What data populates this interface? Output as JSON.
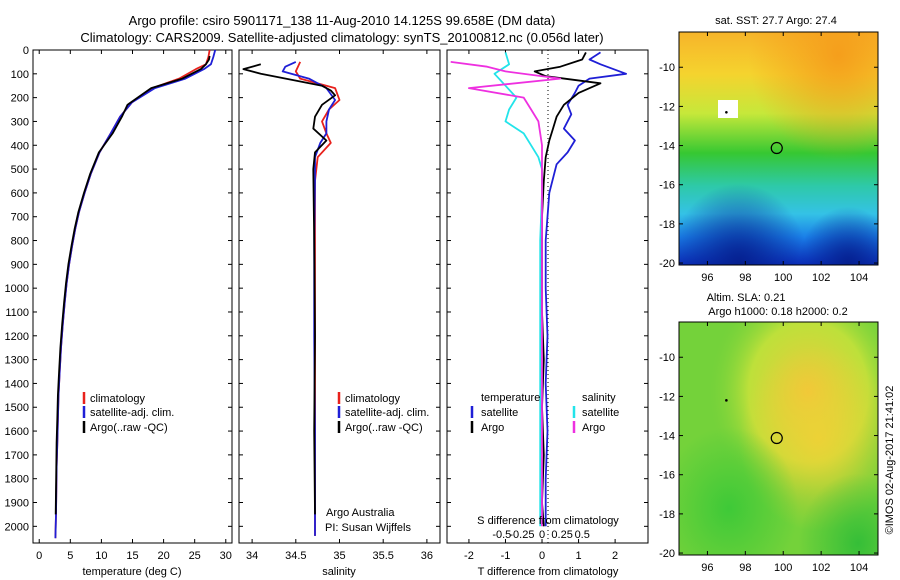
{
  "figure": {
    "title_line1": "Argo profile: csiro 5901171_138 11-Aug-2010 14.125S 99.658E (DM data)",
    "title_line2": "Climatology: CARS2009. Satellite-adjusted climatology: synTS_20100812.nc (0.056d later)",
    "watermark": "©IMOS 02-Aug-2017 21:41:02"
  },
  "colors": {
    "climatology": "#e8211c",
    "satellite": "#1f1fd6",
    "argo": "#000000",
    "sal_satellite": "#22e4ea",
    "sal_argo": "#ee30e0"
  },
  "chart_data": [
    {
      "id": "temperature",
      "type": "line",
      "xlabel": "temperature (deg C)",
      "ylabel": "",
      "xlim": [
        -1,
        31
      ],
      "ylim": [
        2070,
        0
      ],
      "xticks": [
        0,
        5,
        10,
        15,
        20,
        25,
        30
      ],
      "xtick_labels": [
        "0",
        "5",
        "10",
        "15",
        "20",
        "25",
        "30"
      ],
      "yticks": [
        0,
        100,
        200,
        300,
        400,
        500,
        600,
        700,
        800,
        900,
        1000,
        1100,
        1200,
        1300,
        1400,
        1500,
        1600,
        1700,
        1800,
        1900,
        2000
      ],
      "ytick_labels": [
        "0",
        "100",
        "200",
        "300",
        "400",
        "500",
        "600",
        "700",
        "800",
        "900",
        "1000",
        "1100",
        "1200",
        "1300",
        "1400",
        "1500",
        "1600",
        "1700",
        "1800",
        "1900",
        "2000"
      ],
      "legend": [
        "climatology",
        "satellite-adj. clim.",
        "Argo(..raw -QC)"
      ],
      "series": [
        {
          "name": "climatology",
          "color_key": "climatology",
          "x": [
            27.4,
            27.2,
            26.8,
            25.2,
            22.5,
            18.2,
            14.9,
            13.0,
            11.5,
            9.7,
            8.3,
            7.3,
            6.4,
            5.8,
            5.3,
            4.8,
            4.4,
            4.1,
            3.8,
            3.5,
            3.3,
            3.1,
            3.0,
            2.9,
            2.8,
            2.75,
            2.7,
            2.6
          ],
          "y": [
            0,
            30,
            60,
            80,
            120,
            160,
            220,
            280,
            350,
            430,
            520,
            600,
            680,
            750,
            820,
            900,
            980,
            1060,
            1150,
            1250,
            1350,
            1450,
            1550,
            1650,
            1750,
            1850,
            1950,
            2050
          ]
        },
        {
          "name": "satellite-adj. clim.",
          "color_key": "satellite",
          "x": [
            28.3,
            28.0,
            27.6,
            26.5,
            23.5,
            18.6,
            14.9,
            13.0,
            11.5,
            9.7,
            8.3,
            7.3,
            6.4,
            5.8,
            5.3,
            4.8,
            4.4,
            4.1,
            3.8,
            3.5,
            3.3,
            3.1,
            3.0,
            2.9,
            2.8,
            2.75,
            2.7,
            2.6
          ],
          "y": [
            0,
            30,
            60,
            80,
            120,
            160,
            220,
            280,
            350,
            430,
            520,
            600,
            680,
            750,
            820,
            900,
            980,
            1060,
            1150,
            1250,
            1350,
            1450,
            1550,
            1650,
            1750,
            1850,
            1950,
            2050
          ]
        },
        {
          "name": "Argo(..raw -QC)",
          "color_key": "argo",
          "x": [
            27.4,
            27.3,
            26.8,
            26.0,
            23.0,
            18.0,
            14.2,
            13.3,
            11.8,
            9.6,
            8.2,
            7.2,
            6.3,
            5.7,
            5.2,
            4.7,
            4.3,
            4.0,
            3.7,
            3.4,
            3.2,
            3.0,
            2.9,
            2.8,
            2.75,
            2.7,
            2.65
          ],
          "y": [
            25,
            40,
            60,
            80,
            120,
            160,
            230,
            280,
            350,
            430,
            520,
            600,
            680,
            750,
            820,
            900,
            980,
            1060,
            1150,
            1250,
            1350,
            1450,
            1550,
            1650,
            1750,
            1850,
            1950
          ]
        }
      ]
    },
    {
      "id": "salinity",
      "type": "line",
      "xlabel": "salinity",
      "ylabel": "",
      "xlim": [
        33.85,
        36.15
      ],
      "ylim": [
        2070,
        0
      ],
      "xticks": [
        34,
        34.5,
        35,
        35.5,
        36
      ],
      "xtick_labels": [
        "34",
        "34.5",
        "35",
        "35.5",
        "36"
      ],
      "legend": [
        "climatology",
        "satellite-adj. clim.",
        "Argo(..raw -QC)"
      ],
      "annotations": [
        "Argo Australia",
        "PI: Susan Wijffels"
      ],
      "series": [
        {
          "name": "climatology",
          "color_key": "climatology",
          "x": [
            34.55,
            34.5,
            34.55,
            34.95,
            35.0,
            34.88,
            34.8,
            34.85,
            34.9,
            34.75,
            34.72,
            34.72,
            34.72,
            34.72,
            34.72,
            34.72
          ],
          "y": [
            50,
            90,
            120,
            160,
            210,
            250,
            300,
            350,
            390,
            450,
            550,
            800,
            1200,
            1600,
            1900,
            2040
          ]
        },
        {
          "name": "satellite-adj. clim.",
          "color_key": "satellite",
          "x": [
            34.5,
            34.38,
            34.35,
            34.65,
            34.85,
            34.95,
            34.88,
            34.85,
            34.85,
            34.78,
            34.72,
            34.72,
            34.71,
            34.71,
            34.72,
            34.72
          ],
          "y": [
            50,
            70,
            90,
            120,
            160,
            210,
            250,
            300,
            350,
            390,
            450,
            550,
            800,
            1200,
            1600,
            2040
          ]
        },
        {
          "name": "Argo(..raw -QC)",
          "color_key": "argo",
          "x": [
            34.1,
            33.9,
            34.1,
            34.8,
            34.9,
            34.95,
            34.8,
            34.72,
            34.7,
            34.85,
            34.72,
            34.7,
            34.71,
            34.72,
            34.71,
            34.72
          ],
          "y": [
            60,
            80,
            100,
            150,
            170,
            190,
            230,
            280,
            330,
            380,
            430,
            500,
            800,
            1200,
            1600,
            1950
          ]
        }
      ]
    },
    {
      "id": "difference",
      "type": "line",
      "xlabel": "T difference from climatology",
      "xlabel_top": "S difference from climatology",
      "xlim": [
        -2.6,
        2.9
      ],
      "ylim": [
        2070,
        0
      ],
      "xticks": [
        -2,
        -1,
        0,
        1,
        2
      ],
      "xtick_labels": [
        "-2",
        "-1",
        "0",
        "1",
        "2"
      ],
      "sticks_values": [
        -0.5,
        -0.25,
        0,
        0.25,
        0.5
      ],
      "sticks_labels": [
        "-0.5",
        "-0.25",
        "0",
        "0.25",
        "0.5"
      ],
      "legend_temperature": {
        "heading": "temperature",
        "items": [
          "satellite",
          "Argo"
        ]
      },
      "legend_salinity": {
        "heading": "salinity",
        "items": [
          "satellite",
          "Argo"
        ]
      },
      "series": [
        {
          "name": "temperature satellite",
          "color_key": "satellite",
          "x": [
            1.6,
            1.3,
            1.6,
            2.3,
            1.3,
            1.0,
            0.9,
            0.7,
            0.8,
            0.6,
            0.9,
            0.7,
            0.4,
            0.2,
            0.1,
            0.1,
            0.15,
            0.1,
            0.15,
            0.1,
            0.1
          ],
          "y": [
            10,
            40,
            60,
            100,
            120,
            150,
            180,
            230,
            270,
            330,
            380,
            430,
            480,
            600,
            800,
            1000,
            1200,
            1400,
            1600,
            1800,
            2000
          ]
        },
        {
          "name": "temperature Argo",
          "color_key": "argo",
          "x": [
            1.2,
            1.1,
            0.5,
            -0.2,
            0.1,
            1.6,
            1.0,
            0.6,
            0.4,
            0.3,
            0.2,
            0.1,
            0.05,
            0.0,
            0.0,
            0.0,
            0.05,
            0.0,
            0.05,
            0.0,
            0.05
          ],
          "y": [
            10,
            40,
            70,
            90,
            110,
            140,
            180,
            230,
            280,
            330,
            380,
            450,
            550,
            700,
            900,
            1100,
            1300,
            1500,
            1700,
            1900,
            2000
          ]
        },
        {
          "name": "salinity satellite",
          "color_key": "sal_satellite",
          "x": [
            -1.0,
            -0.9,
            -1.3,
            -1.0,
            -0.7,
            -0.9,
            -1.0,
            -0.5,
            -0.3,
            -0.1,
            0.0,
            0.0,
            -0.05,
            -0.05,
            -0.05,
            -0.05,
            -0.05,
            -0.05
          ],
          "y": [
            10,
            60,
            100,
            150,
            200,
            250,
            300,
            350,
            400,
            450,
            500,
            600,
            800,
            1000,
            1200,
            1500,
            1800,
            2000
          ]
        },
        {
          "name": "salinity Argo",
          "color_key": "sal_argo",
          "x": [
            -2.5,
            -1.5,
            -1.0,
            0.5,
            -2.0,
            -0.5,
            -0.3,
            -0.1,
            0.0,
            0.0,
            0.0,
            0.0
          ],
          "y": [
            50,
            70,
            90,
            120,
            160,
            200,
            250,
            300,
            400,
            600,
            1000,
            2000
          ]
        }
      ]
    },
    {
      "id": "sst_map",
      "type": "heatmap",
      "title": "sat. SST: 27.7 Argo: 27.4",
      "xticks": [
        96,
        98,
        100,
        102,
        104
      ],
      "xtick_labels": [
        "96",
        "98",
        "100",
        "102",
        "104"
      ],
      "yticks": [
        -10,
        -12,
        -14,
        -16,
        -18,
        -20
      ],
      "ytick_labels": [
        "-10",
        "-12",
        "-14",
        "-16",
        "-18",
        "-20"
      ],
      "xlim": [
        94.5,
        105
      ],
      "ylim": [
        -20.1,
        -8.2
      ],
      "marker": {
        "lon": 99.658,
        "lat": -14.125
      },
      "trajectory": {
        "lon": 97.0,
        "lat": -12.3
      }
    },
    {
      "id": "sla_map",
      "type": "heatmap",
      "title_line1": "Altim. SLA: 0.21",
      "title_line2": "Argo h1000: 0.18 h2000: 0.2",
      "xticks": [
        96,
        98,
        100,
        102,
        104
      ],
      "xtick_labels": [
        "96",
        "98",
        "100",
        "102",
        "104"
      ],
      "yticks": [
        -10,
        -12,
        -14,
        -16,
        -18,
        -20
      ],
      "ytick_labels": [
        "-10",
        "-12",
        "-14",
        "-16",
        "-18",
        "-20"
      ],
      "xlim": [
        94.5,
        105
      ],
      "ylim": [
        -20.1,
        -8.2
      ],
      "marker": {
        "lon": 99.658,
        "lat": -14.125
      },
      "trajectory": {
        "lon": 97.0,
        "lat": -12.2
      }
    }
  ]
}
